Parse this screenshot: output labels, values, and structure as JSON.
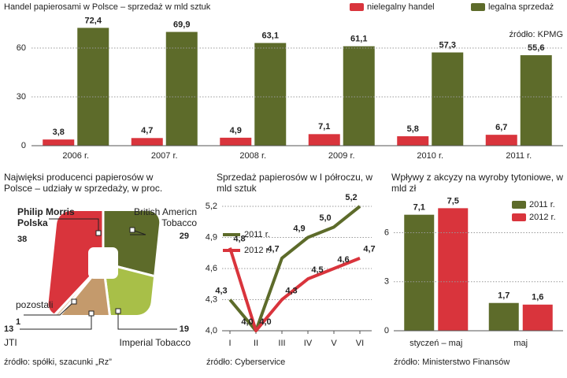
{
  "chart_data": [
    {
      "type": "bar",
      "title": "Handel papierosami w Polsce – sprzedaż w mld sztuk",
      "source": "źródło: KPMG",
      "categories": [
        "2006 r.",
        "2007 r.",
        "2008 r.",
        "2009 r.",
        "2010 r.",
        "2011 r."
      ],
      "series": [
        {
          "name": "nielegalny handel",
          "color": "#d9343c",
          "values": [
            3.8,
            4.7,
            4.9,
            7.1,
            5.8,
            6.7
          ],
          "value_labels": [
            "3,8",
            "4,7",
            "4,9",
            "7,1",
            "5,8",
            "6,7"
          ]
        },
        {
          "name": "legalna sprzedaż",
          "color": "#5d6b2a",
          "values": [
            72.4,
            69.9,
            63.1,
            61.1,
            57.3,
            55.6
          ],
          "value_labels": [
            "72,4",
            "69,9",
            "63,1",
            "61,1",
            "57,3",
            "55,6"
          ]
        }
      ],
      "ylim": [
        0,
        75
      ],
      "yticks": [
        0,
        30,
        60
      ],
      "grid": true,
      "legend": "top-right"
    },
    {
      "type": "pie",
      "title": "Najwięksi producenci papierosów w Polsce – udziały w sprzedaży, w proc.",
      "source": "źródło: spółki, szacunki „Rz”",
      "categories": [
        "British Americn Tobacco",
        "Imperial Tobacco",
        "JTI",
        "pozostali",
        "Philip Morris Polska"
      ],
      "values": [
        29,
        19,
        13,
        1,
        38
      ],
      "colors": [
        "#5d6b2a",
        "#a8bf48",
        "#c49a6c",
        "#e6d2b8",
        "#d9343c"
      ]
    },
    {
      "type": "line",
      "title": "Sprzedaż papierosów w I półroczu, w mld sztuk",
      "source": "źródło: Cyberservice",
      "categories": [
        "I",
        "II",
        "III",
        "IV",
        "V",
        "VI"
      ],
      "series": [
        {
          "name": "2011 r.",
          "color": "#5d6b2a",
          "values": [
            4.3,
            4.0,
            4.7,
            4.9,
            5.0,
            5.2
          ],
          "value_labels": [
            "4,3",
            "4,0",
            "4,7",
            "4,9",
            "5,0",
            "5,2"
          ]
        },
        {
          "name": "2012 r.",
          "color": "#d9343c",
          "values": [
            4.8,
            4.0,
            4.3,
            4.5,
            4.6,
            4.7
          ],
          "value_labels": [
            "4,8",
            "4,0",
            "4,3",
            "4,5",
            "4,6",
            "4,7"
          ]
        }
      ],
      "ylim": [
        4.0,
        5.2
      ],
      "yticks": [
        {
          "value": 4.0,
          "label": "4,0"
        },
        {
          "value": 4.3,
          "label": "4,3"
        },
        {
          "value": 4.6,
          "label": "4,6"
        },
        {
          "value": 4.9,
          "label": "4,9"
        },
        {
          "value": 5.2,
          "label": "5,2"
        }
      ],
      "grid": true,
      "legend": "top-left"
    },
    {
      "type": "bar",
      "title": "Wpływy z akcyzy na wyroby tytoniowe, w mld zł",
      "source": "źródło: Ministerstwo Finansów",
      "categories": [
        "styczeń – maj",
        "maj"
      ],
      "series": [
        {
          "name": "2011 r.",
          "color": "#5d6b2a",
          "values": [
            7.1,
            1.7
          ],
          "value_labels": [
            "7,1",
            "1,7"
          ]
        },
        {
          "name": "2012 r.",
          "color": "#d9343c",
          "values": [
            7.5,
            1.6
          ],
          "value_labels": [
            "7,5",
            "1,6"
          ]
        }
      ],
      "ylim": [
        0,
        8
      ],
      "yticks": [
        0,
        3,
        6
      ],
      "grid": true,
      "legend": "top-right"
    }
  ]
}
